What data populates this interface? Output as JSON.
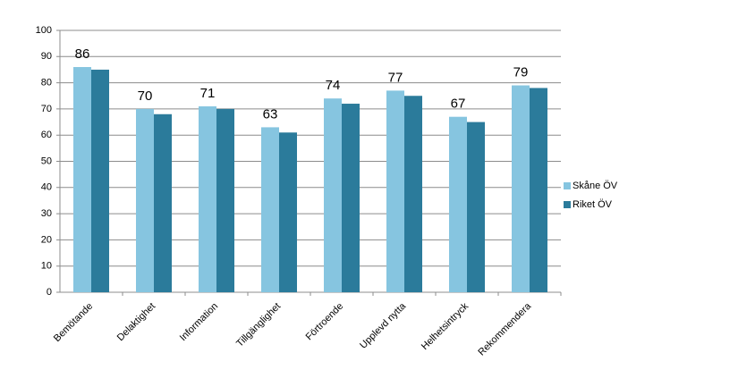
{
  "chart_data": {
    "type": "bar",
    "categories": [
      "Bemötande",
      "Delaktighet",
      "Information",
      "Tillgänglighet",
      "Förtroende",
      "Upplevd nytta",
      "Helhetsintryck",
      "Rekommendera"
    ],
    "series": [
      {
        "name": "Skåne ÖV",
        "color": "#86c5e0",
        "values": [
          86,
          70,
          71,
          63,
          74,
          77,
          67,
          79
        ],
        "data_labels": true
      },
      {
        "name": "Riket ÖV",
        "color": "#2b7b9b",
        "values": [
          85,
          68,
          70,
          61,
          72,
          75,
          65,
          78
        ]
      }
    ],
    "ylim": [
      0,
      100
    ],
    "yticks": [
      0,
      10,
      20,
      30,
      40,
      50,
      60,
      70,
      80,
      90,
      100
    ],
    "grid": true,
    "legend": "right"
  }
}
